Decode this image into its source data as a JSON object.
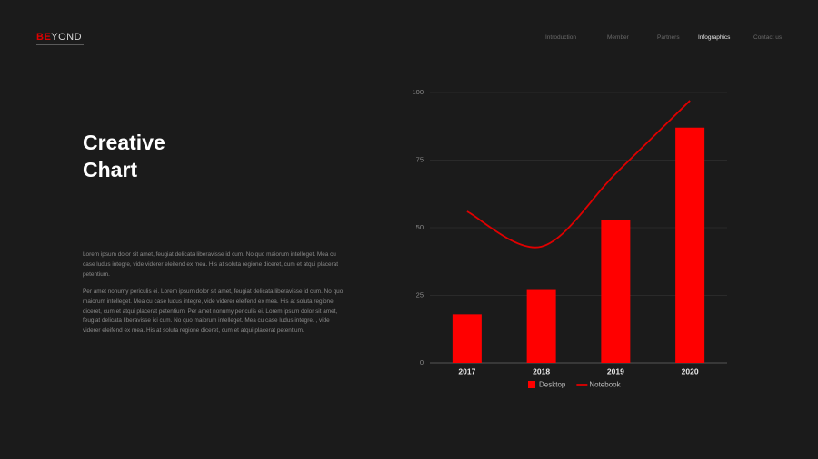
{
  "logo": {
    "accent": "BE",
    "rest": "YOND"
  },
  "nav": [
    "Introduction",
    "Member",
    "Partners",
    "Infographics",
    "Contact us"
  ],
  "heading": [
    "Creative",
    "Chart"
  ],
  "paragraphs": [
    "Lorem ipsum dolor sit amet, feugiat delicata liberavisse id cum. No quo maiorum intelleget. Mea cu case ludus integre, vide viderer eleifend ex mea. His at soluta regione diceret, cum et atqui placerat petentium.",
    "Per amet nonumy periculis ei. Lorem ipsum dolor sit amet, feugiat delicata liberavisse id cum. No quo maiorum intelleget. Mea cu case ludus integre, vide viderer eleifend ex mea. His at soluta regione diceret, cum et atqui placerat petentium. Per amet nonumy periculis ei. Lorem ipsum dolor sit amet, feugiat delicata liberavisse ici cum. No quo maiorum intelleget. Mea cu case ludus integre. , vide viderer eleifend ex mea. His at soluta regione diceret, cum et atqui placerat petentium."
  ],
  "chart_data": {
    "type": "bar-line",
    "categories": [
      "2017",
      "2018",
      "2019",
      "2020"
    ],
    "series": [
      {
        "name": "Desktop",
        "type": "bar",
        "color": "#ff0000",
        "values": [
          18,
          27,
          53,
          87
        ]
      },
      {
        "name": "Notebook",
        "type": "line",
        "color": "#e00000",
        "values": [
          56,
          43,
          70,
          97
        ]
      }
    ],
    "ylim": [
      0,
      100
    ],
    "yticks": [
      0,
      25,
      50,
      75,
      100
    ],
    "grid": true,
    "legend": "bottom"
  }
}
